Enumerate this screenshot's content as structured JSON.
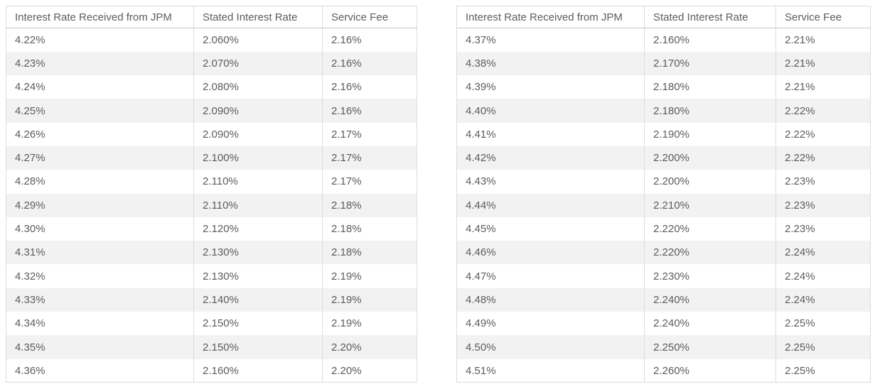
{
  "colors": {
    "border": "#dcdcdc",
    "header_border": "#c9c9c9",
    "alt_row_background": "#f2f2f2",
    "text": "#5c5c5c",
    "page_background": "#ffffff"
  },
  "chart_data": [
    {
      "type": "table",
      "title": "",
      "columns": [
        "Interest Rate Received from JPM",
        "Stated Interest Rate",
        "Service Fee"
      ],
      "rows": [
        [
          "4.22%",
          "2.060%",
          "2.16%"
        ],
        [
          "4.23%",
          "2.070%",
          "2.16%"
        ],
        [
          "4.24%",
          "2.080%",
          "2.16%"
        ],
        [
          "4.25%",
          "2.090%",
          "2.16%"
        ],
        [
          "4.26%",
          "2.090%",
          "2.17%"
        ],
        [
          "4.27%",
          "2.100%",
          "2.17%"
        ],
        [
          "4.28%",
          "2.110%",
          "2.17%"
        ],
        [
          "4.29%",
          "2.110%",
          "2.18%"
        ],
        [
          "4.30%",
          "2.120%",
          "2.18%"
        ],
        [
          "4.31%",
          "2.130%",
          "2.18%"
        ],
        [
          "4.32%",
          "2.130%",
          "2.19%"
        ],
        [
          "4.33%",
          "2.140%",
          "2.19%"
        ],
        [
          "4.34%",
          "2.150%",
          "2.19%"
        ],
        [
          "4.35%",
          "2.150%",
          "2.20%"
        ],
        [
          "4.36%",
          "2.160%",
          "2.20%"
        ]
      ]
    },
    {
      "type": "table",
      "title": "",
      "columns": [
        "Interest Rate Received from JPM",
        "Stated Interest Rate",
        "Service Fee"
      ],
      "rows": [
        [
          "4.37%",
          "2.160%",
          "2.21%"
        ],
        [
          "4.38%",
          "2.170%",
          "2.21%"
        ],
        [
          "4.39%",
          "2.180%",
          "2.21%"
        ],
        [
          "4.40%",
          "2.180%",
          "2.22%"
        ],
        [
          "4.41%",
          "2.190%",
          "2.22%"
        ],
        [
          "4.42%",
          "2.200%",
          "2.22%"
        ],
        [
          "4.43%",
          "2.200%",
          "2.23%"
        ],
        [
          "4.44%",
          "2.210%",
          "2.23%"
        ],
        [
          "4.45%",
          "2.220%",
          "2.23%"
        ],
        [
          "4.46%",
          "2.220%",
          "2.24%"
        ],
        [
          "4.47%",
          "2.230%",
          "2.24%"
        ],
        [
          "4.48%",
          "2.240%",
          "2.24%"
        ],
        [
          "4.49%",
          "2.240%",
          "2.25%"
        ],
        [
          "4.50%",
          "2.250%",
          "2.25%"
        ],
        [
          "4.51%",
          "2.260%",
          "2.25%"
        ]
      ]
    }
  ]
}
